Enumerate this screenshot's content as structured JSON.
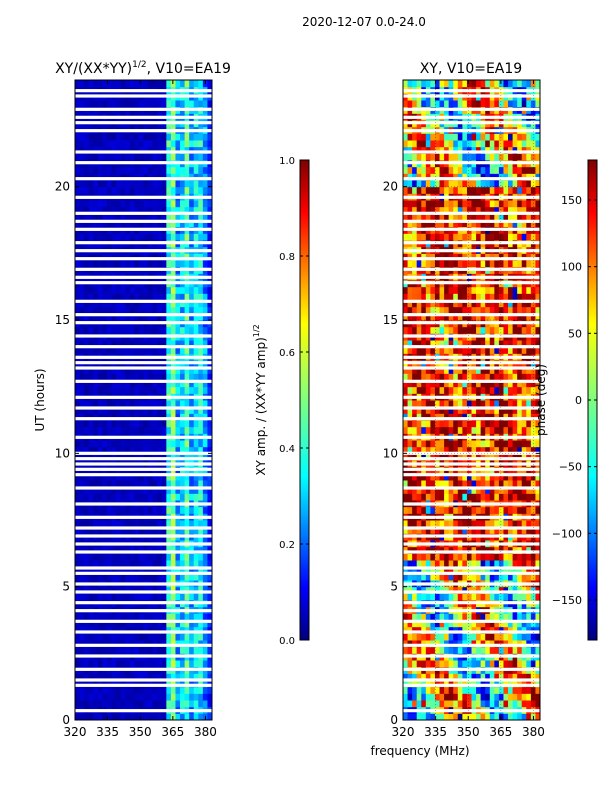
{
  "suptitle": "2020-12-07 0.0-24.0",
  "colors": {
    "jet": [
      "#00007f",
      "#0000ff",
      "#007fff",
      "#00ffff",
      "#7fff7f",
      "#ffff00",
      "#ff7f00",
      "#ff0000",
      "#7f0000"
    ],
    "gap": "#ffffff"
  },
  "chart_data": [
    {
      "type": "heatmap",
      "id": "amplitude",
      "title": "XY/(XX*YY)^1/2, V10=EA19",
      "title_main": "XY/(XX*YY)",
      "title_sup": "1/2",
      "title_tail": ", V10=EA19",
      "xlabel": "",
      "ylabel": "UT (hours)",
      "xlim": [
        320,
        383
      ],
      "ylim": [
        0,
        24
      ],
      "xticks": [
        320,
        335,
        350,
        365,
        380
      ],
      "yticks": [
        0,
        5,
        10,
        15,
        20
      ],
      "colorbar": {
        "label": "XY amp. / (XX*YY amp)^1/2",
        "label_main": "XY amp. / (XX*YY amp)",
        "label_sup": "1/2",
        "range": [
          0.0,
          1.0
        ],
        "ticks": [
          0.0,
          0.2,
          0.4,
          0.6,
          0.8,
          1.0
        ],
        "tick_labels": [
          "0.0",
          "0.2",
          "0.4",
          "0.6",
          "0.8",
          "1.0"
        ]
      },
      "description": "Mostly ~0.05 below 360 MHz; elevated 0.3-0.6 in band 361-380 MHz with peaks near 364 and 371 MHz",
      "flagged_utc_hours": [
        0.35,
        1.3,
        1.5,
        1.9,
        2.4,
        2.8,
        3.3,
        3.7,
        4.1,
        4.4,
        4.8,
        5.1,
        5.5,
        5.7,
        6.3,
        6.6,
        6.9,
        7.2,
        7.6,
        8.1,
        8.7,
        9.2,
        9.4,
        9.6,
        9.8,
        10.0,
        10.6,
        11.3,
        11.7,
        12.1,
        12.7,
        13.2,
        13.4,
        13.6,
        14.0,
        14.4,
        14.9,
        15.2,
        15.7,
        16.4,
        16.6,
        16.9,
        17.3,
        17.6,
        17.9,
        18.4,
        18.7,
        19.0,
        19.6,
        20.3,
        20.9,
        21.3,
        22.1,
        22.4,
        22.6,
        22.9,
        23.4,
        23.6
      ]
    },
    {
      "type": "heatmap",
      "id": "phase",
      "title": "XY, V10=EA19",
      "xlabel": "frequency (MHz)",
      "ylabel": "",
      "xlim": [
        320,
        383
      ],
      "ylim": [
        0,
        24
      ],
      "xticks": [
        320,
        335,
        350,
        365,
        380
      ],
      "yticks": [
        0,
        5,
        10,
        15,
        20
      ],
      "colorbar": {
        "label": "phase (deg)",
        "range": [
          -180,
          180
        ],
        "ticks": [
          -150,
          -100,
          -50,
          0,
          50,
          100,
          150
        ],
        "tick_labels": [
          "−150",
          "−100",
          "−50",
          "0",
          "50",
          "100",
          "150"
        ]
      },
      "description": "Phase varies across full range; predominantly red (100-180 deg) between 6 and 20 UT, green/cyan/yellow elsewhere",
      "flagged_utc_hours": [
        0.35,
        1.3,
        1.5,
        1.9,
        2.4,
        2.8,
        3.3,
        3.7,
        4.1,
        4.4,
        4.8,
        5.1,
        5.5,
        5.7,
        6.3,
        6.6,
        6.9,
        7.2,
        7.6,
        8.1,
        8.7,
        9.2,
        9.4,
        9.6,
        9.8,
        10.0,
        10.6,
        11.3,
        11.7,
        12.1,
        12.7,
        13.2,
        13.4,
        13.6,
        14.0,
        14.4,
        14.9,
        15.2,
        15.7,
        16.4,
        16.6,
        16.9,
        17.3,
        17.6,
        17.9,
        18.4,
        18.7,
        19.0,
        19.6,
        20.3,
        20.9,
        21.3,
        22.1,
        22.4,
        22.6,
        22.9,
        23.4,
        23.6
      ]
    }
  ]
}
